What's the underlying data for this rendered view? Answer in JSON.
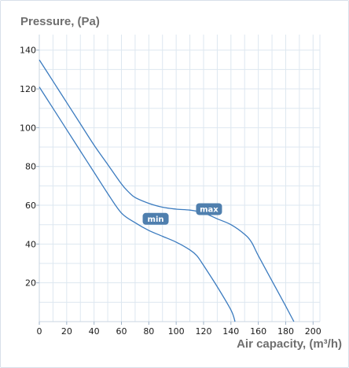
{
  "chart_data": {
    "type": "line",
    "title": "",
    "ylabel": "Pressure, (Pa)",
    "xlabel": "Air capacity, (m³/h)",
    "xlim": [
      0,
      205
    ],
    "ylim": [
      0,
      148
    ],
    "x_ticks": [
      0,
      20,
      40,
      60,
      80,
      100,
      120,
      140,
      160,
      180,
      200
    ],
    "y_ticks": [
      20,
      40,
      60,
      80,
      100,
      120,
      140
    ],
    "grid": true,
    "legend": "none",
    "series": [
      {
        "name": "max",
        "color": "#3b7bbf",
        "label_at": [
          124,
          58
        ],
        "points": [
          [
            0,
            135
          ],
          [
            10,
            124
          ],
          [
            20,
            113
          ],
          [
            30,
            102
          ],
          [
            40,
            91
          ],
          [
            50,
            81
          ],
          [
            60,
            71
          ],
          [
            65,
            67
          ],
          [
            70,
            64
          ],
          [
            80,
            61
          ],
          [
            90,
            59
          ],
          [
            100,
            58
          ],
          [
            110,
            57.5
          ],
          [
            120,
            56
          ],
          [
            130,
            53
          ],
          [
            140,
            50
          ],
          [
            150,
            45
          ],
          [
            155,
            41
          ],
          [
            160,
            34
          ],
          [
            170,
            21
          ],
          [
            180,
            8
          ],
          [
            186,
            0
          ]
        ]
      },
      {
        "name": "min",
        "color": "#3b7bbf",
        "label_at": [
          85,
          53
        ],
        "points": [
          [
            0,
            121
          ],
          [
            10,
            110
          ],
          [
            20,
            99
          ],
          [
            30,
            88
          ],
          [
            40,
            77
          ],
          [
            50,
            66
          ],
          [
            60,
            56
          ],
          [
            70,
            51
          ],
          [
            80,
            47
          ],
          [
            90,
            44
          ],
          [
            100,
            41
          ],
          [
            110,
            37
          ],
          [
            115,
            34
          ],
          [
            120,
            29
          ],
          [
            130,
            18
          ],
          [
            140,
            6
          ],
          [
            143,
            0
          ]
        ]
      }
    ]
  }
}
